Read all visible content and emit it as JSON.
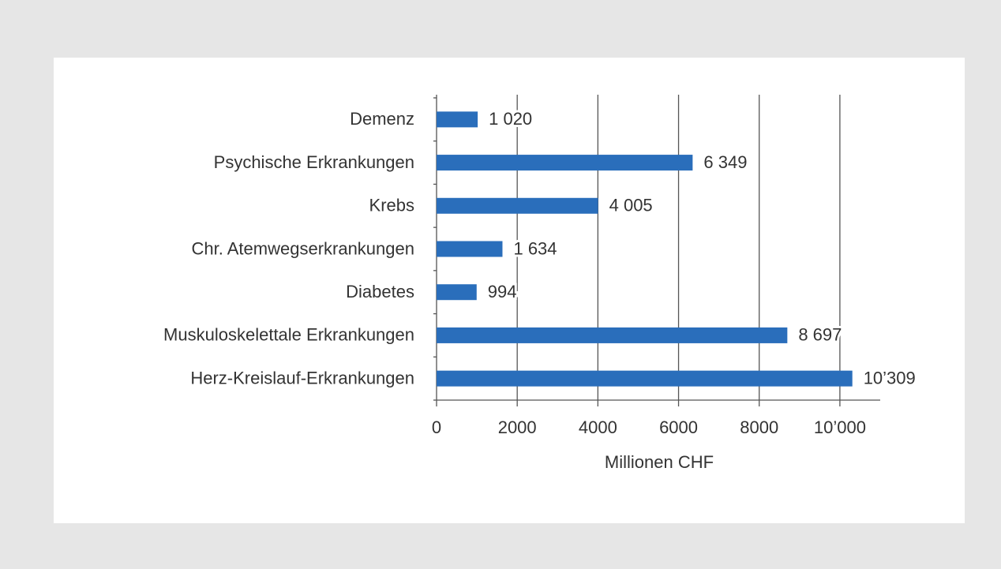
{
  "chart_data": {
    "type": "barh",
    "categories": [
      "Demenz",
      "Psychische Erkrankungen",
      "Krebs",
      "Chr. Atemwegserkrankungen",
      "Diabetes",
      "Muskuloskelettale Erkrankungen",
      "Herz-Kreislauf-Erkrankungen"
    ],
    "values": [
      1020,
      6349,
      4005,
      1634,
      994,
      8697,
      10309
    ],
    "value_labels": [
      "1 020",
      "6 349",
      "4 005",
      "1 634",
      "994",
      "8 697",
      "10’309"
    ],
    "color": "#2a6ebb",
    "xlim": [
      0,
      11000
    ],
    "xticks": [
      0,
      2000,
      4000,
      6000,
      8000,
      {
        "value": 10000,
        "label": "10’000"
      }
    ],
    "xlabel": "Millionen CHF",
    "grid": true
  }
}
